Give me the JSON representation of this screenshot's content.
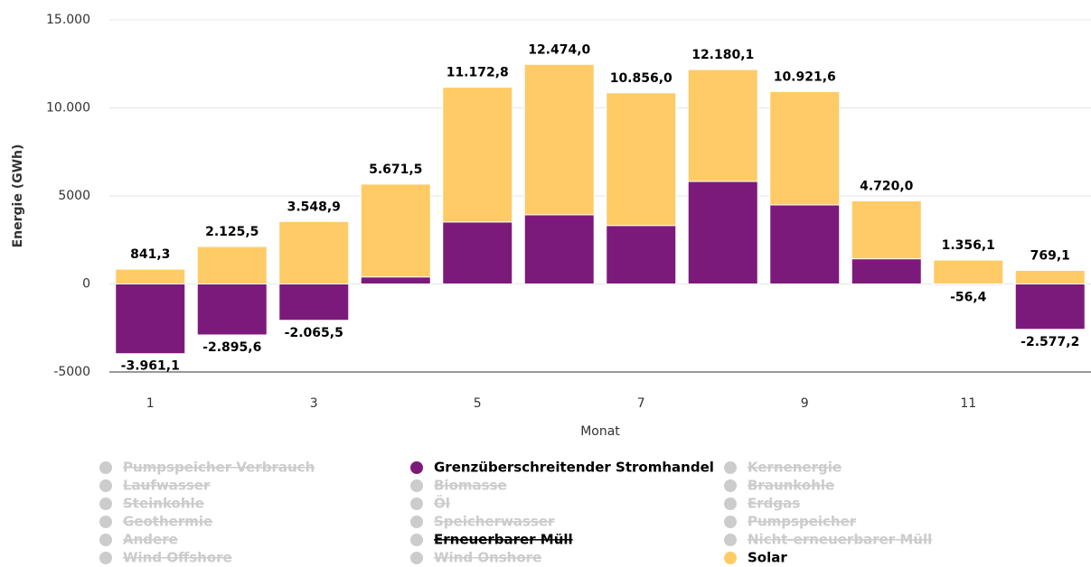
{
  "chart_data": {
    "type": "stacked-bar",
    "y_axis_label": "Energie (GWh)",
    "x_axis_label": "Monat",
    "categories": [
      1,
      null,
      3,
      null,
      5,
      null,
      7,
      null,
      9,
      null,
      11,
      null
    ],
    "ylim": [
      -5000,
      15000
    ],
    "yticks": [
      -5000,
      0,
      5000,
      {
        "value": 10000,
        "label": "10.000"
      },
      {
        "value": 15000,
        "label": "15.000"
      }
    ],
    "grid": true,
    "stack_totals": [
      841.3,
      2125.5,
      3548.9,
      5671.5,
      11172.8,
      12474.0,
      10856.0,
      12180.1,
      10921.6,
      4720.0,
      1356.1,
      769.1
    ],
    "stack_total_labels": [
      "841,3",
      "2.125,5",
      "3.548,9",
      "5.671,5",
      "11.172,8",
      "12.474,0",
      "10.856,0",
      "12.180,1",
      "10.921,6",
      "4.720,0",
      "1.356,1",
      "769,1"
    ],
    "series": [
      {
        "name": "Pumpspeicher Verbrauch",
        "visible": false
      },
      {
        "name": "Grenzüberschreitender Stromhandel",
        "visible": true,
        "color": "#7c1a7b",
        "values": [
          -3961.1,
          -2895.6,
          -2065.5,
          400,
          3520,
          3930,
          3320,
          5820,
          4490,
          1430,
          -56.4,
          -2577.2
        ],
        "value_labels": [
          "-3.961,1",
          "-2.895,6",
          "-2.065,5",
          null,
          null,
          null,
          null,
          null,
          null,
          null,
          "-56,4",
          "-2.577,2"
        ]
      },
      {
        "name": "Kernenergie",
        "visible": false
      },
      {
        "name": "Laufwasser",
        "visible": false
      },
      {
        "name": "Biomasse",
        "visible": false
      },
      {
        "name": "Braunkohle",
        "visible": false
      },
      {
        "name": "Steinkohle",
        "visible": false
      },
      {
        "name": "Öl",
        "visible": false
      },
      {
        "name": "Erdgas",
        "visible": false
      },
      {
        "name": "Geothermie",
        "visible": false
      },
      {
        "name": "Speicherwasser",
        "visible": false
      },
      {
        "name": "Pumpspeicher",
        "visible": false
      },
      {
        "name": "Andere",
        "visible": false
      },
      {
        "name": "Erneuerbarer Müll",
        "visible": false,
        "highlighted": true
      },
      {
        "name": "Nicht-erneuerbarer Müll",
        "visible": false
      },
      {
        "name": "Wind Offshore",
        "visible": false
      },
      {
        "name": "Wind Onshore",
        "visible": false
      },
      {
        "name": "Solar",
        "visible": true,
        "color": "#fecb66",
        "values": [
          841.3,
          2125.5,
          3548.9,
          5271.5,
          7652.8,
          8544.0,
          7536.0,
          6360.1,
          6431.6,
          3290.0,
          1356.1,
          769.1
        ]
      }
    ]
  }
}
